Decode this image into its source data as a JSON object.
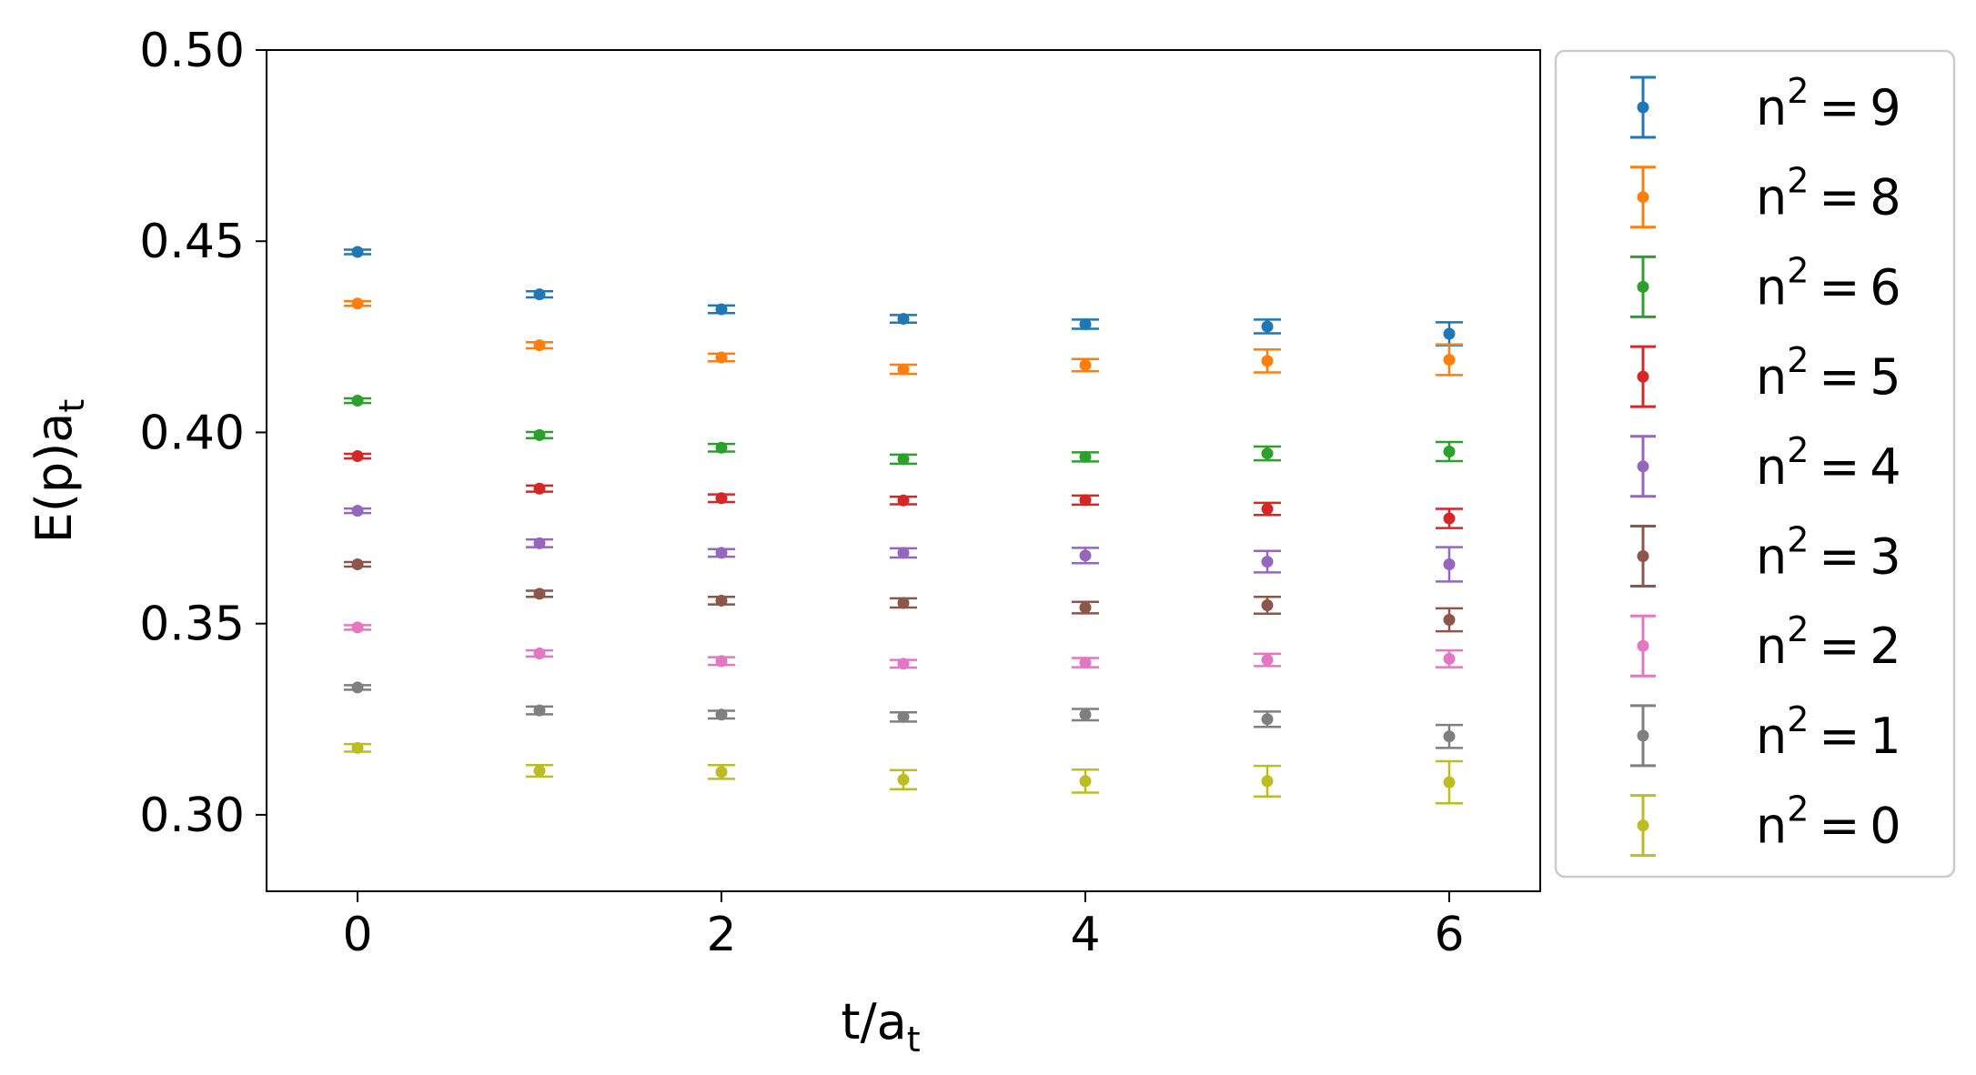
{
  "chart_data": {
    "type": "scatter",
    "xlabel": "t/a",
    "xlabel_sub": "t",
    "ylabel": "E(p)a",
    "ylabel_sub": "t",
    "xlim": [
      -0.5,
      6.5
    ],
    "ylim": [
      0.28,
      0.5
    ],
    "xticks": [
      0,
      2,
      4,
      6
    ],
    "xtick_labels": [
      "0",
      "2",
      "4",
      "6"
    ],
    "yticks": [
      0.3,
      0.35,
      0.4,
      0.45,
      0.5
    ],
    "ytick_labels": [
      "0.30",
      "0.35",
      "0.40",
      "0.45",
      "0.50"
    ],
    "grid": false,
    "legend_position": "outside-right",
    "x": [
      0,
      1,
      2,
      3,
      4,
      5,
      6
    ],
    "series": [
      {
        "name": "9",
        "color": "#1f77b4",
        "values": [
          0.4472,
          0.4361,
          0.4322,
          0.4297,
          0.4283,
          0.4277,
          0.4258
        ],
        "errors": [
          0.0006,
          0.0008,
          0.001,
          0.001,
          0.0012,
          0.0018,
          0.003
        ]
      },
      {
        "name": "8",
        "color": "#ff7f0e",
        "values": [
          0.4337,
          0.4228,
          0.4196,
          0.4165,
          0.4176,
          0.4187,
          0.419
        ],
        "errors": [
          0.0006,
          0.0008,
          0.001,
          0.0012,
          0.0016,
          0.003,
          0.004
        ]
      },
      {
        "name": "6",
        "color": "#2ca02c",
        "values": [
          0.4083,
          0.3993,
          0.396,
          0.393,
          0.3936,
          0.3945,
          0.395
        ],
        "errors": [
          0.0006,
          0.0008,
          0.001,
          0.0012,
          0.0012,
          0.0018,
          0.0025
        ]
      },
      {
        "name": "5",
        "color": "#d62728",
        "values": [
          0.3938,
          0.3853,
          0.3828,
          0.3822,
          0.3823,
          0.38,
          0.3775
        ],
        "errors": [
          0.0006,
          0.0008,
          0.001,
          0.001,
          0.0012,
          0.0016,
          0.0025
        ]
      },
      {
        "name": "4",
        "color": "#9467bd",
        "values": [
          0.3795,
          0.371,
          0.3685,
          0.3685,
          0.3678,
          0.3662,
          0.3655
        ],
        "errors": [
          0.0006,
          0.001,
          0.001,
          0.0012,
          0.002,
          0.0028,
          0.0045
        ]
      },
      {
        "name": "3",
        "color": "#8c564b",
        "values": [
          0.3655,
          0.3578,
          0.356,
          0.3554,
          0.3542,
          0.3548,
          0.351
        ],
        "errors": [
          0.0006,
          0.0008,
          0.001,
          0.0012,
          0.0015,
          0.0022,
          0.003
        ]
      },
      {
        "name": "2",
        "color": "#e377c2",
        "values": [
          0.349,
          0.3422,
          0.3402,
          0.3395,
          0.3398,
          0.3405,
          0.3408
        ],
        "errors": [
          0.0006,
          0.0008,
          0.001,
          0.001,
          0.0012,
          0.0016,
          0.0022
        ]
      },
      {
        "name": "1",
        "color": "#7f7f7f",
        "values": [
          0.3333,
          0.3273,
          0.3262,
          0.3256,
          0.3262,
          0.325,
          0.3205
        ],
        "errors": [
          0.0006,
          0.001,
          0.001,
          0.0012,
          0.0015,
          0.002,
          0.003
        ]
      },
      {
        "name": "0",
        "color": "#bcbd22",
        "values": [
          0.3175,
          0.3115,
          0.3112,
          0.3092,
          0.3088,
          0.3088,
          0.3085
        ],
        "errors": [
          0.001,
          0.0015,
          0.0018,
          0.0025,
          0.003,
          0.004,
          0.0055
        ]
      }
    ],
    "legend_prefix": "n",
    "legend_sup": "2",
    "legend_eq": "="
  }
}
